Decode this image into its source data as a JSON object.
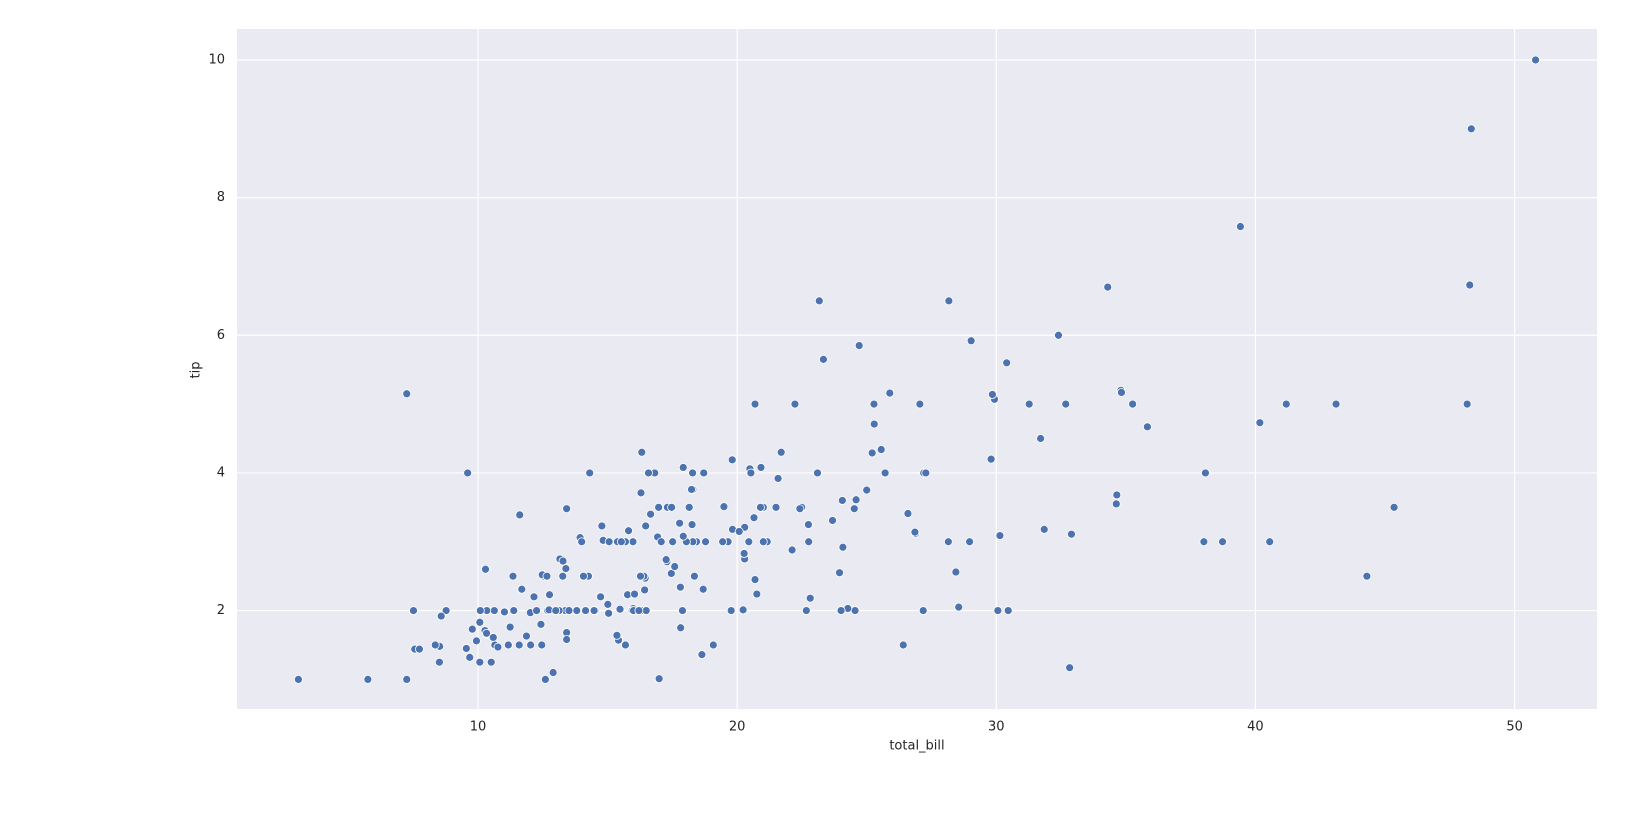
{
  "chart_data": {
    "type": "scatter",
    "xlabel": "total_bill",
    "ylabel": "tip",
    "color": "#4c72b0",
    "background": "#eaeaf2",
    "grid": true,
    "xlim": [
      0.7,
      53.18
    ],
    "ylim": [
      0.57,
      10.45
    ],
    "xticks": [
      10,
      20,
      30,
      40,
      50
    ],
    "yticks": [
      2,
      4,
      6,
      8,
      10
    ],
    "x": [
      16.99,
      10.34,
      21.01,
      23.68,
      24.59,
      25.29,
      8.77,
      26.88,
      15.04,
      14.78,
      10.27,
      35.26,
      15.42,
      18.43,
      14.83,
      21.58,
      10.33,
      16.29,
      16.97,
      20.65,
      17.92,
      20.29,
      15.77,
      39.42,
      19.82,
      17.81,
      13.37,
      12.69,
      21.7,
      19.65,
      9.55,
      18.35,
      15.06,
      20.69,
      17.78,
      24.06,
      16.31,
      16.93,
      18.69,
      31.27,
      16.04,
      17.46,
      13.94,
      9.68,
      30.4,
      18.29,
      22.23,
      32.4,
      28.55,
      18.04,
      12.54,
      10.29,
      34.81,
      9.94,
      25.56,
      19.49,
      38.01,
      26.41,
      11.24,
      48.27,
      20.29,
      13.81,
      11.02,
      18.29,
      17.59,
      20.08,
      16.45,
      3.07,
      20.23,
      15.01,
      12.02,
      17.07,
      26.86,
      25.28,
      14.73,
      10.51,
      17.92,
      27.2,
      22.76,
      17.29,
      19.44,
      16.66,
      10.07,
      32.68,
      15.98,
      34.83,
      13.03,
      18.28,
      24.71,
      21.16,
      28.97,
      22.49,
      5.75,
      16.32,
      22.75,
      40.17,
      27.28,
      12.03,
      21.01,
      12.46,
      11.35,
      15.38,
      44.3,
      22.42,
      20.92,
      15.36,
      20.49,
      25.21,
      18.24,
      14.31,
      14.0,
      7.25,
      38.07,
      23.95,
      25.71,
      17.31,
      29.93,
      10.65,
      12.43,
      24.08,
      11.69,
      13.42,
      14.26,
      15.95,
      12.48,
      29.8,
      8.52,
      14.52,
      11.38,
      22.82,
      19.08,
      20.27,
      11.17,
      12.26,
      18.26,
      8.51,
      10.33,
      14.15,
      16.0,
      13.16,
      17.47,
      34.3,
      41.19,
      27.05,
      16.43,
      8.35,
      18.64,
      11.87,
      9.78,
      7.51,
      14.07,
      13.13,
      17.26,
      24.55,
      19.77,
      29.85,
      48.17,
      25.0,
      13.39,
      16.49,
      21.5,
      12.66,
      16.21,
      13.81,
      17.51,
      24.52,
      20.76,
      31.71,
      10.59,
      10.63,
      50.81,
      15.81,
      7.25,
      31.85,
      16.82,
      32.9,
      17.89,
      14.48,
      9.6,
      34.63,
      34.65,
      23.33,
      45.35,
      23.17,
      40.55,
      20.69,
      20.9,
      30.46,
      18.15,
      23.1,
      15.69,
      19.81,
      28.44,
      15.48,
      16.58,
      7.56,
      10.34,
      43.11,
      13.0,
      13.51,
      18.71,
      12.74,
      13.0,
      16.4,
      20.53,
      16.47,
      26.59,
      38.73,
      24.27,
      12.76,
      30.06,
      25.89,
      48.33,
      13.27,
      28.17,
      12.9,
      28.15,
      11.59,
      7.74,
      30.14,
      12.16,
      13.42,
      8.58,
      15.98,
      13.42,
      16.27,
      10.09,
      20.45,
      13.28,
      22.12,
      24.01,
      15.69,
      11.61,
      10.77,
      15.53,
      10.07,
      12.6,
      32.83,
      35.83,
      29.03,
      27.18,
      22.67,
      17.82,
      18.78
    ],
    "values": [
      1.01,
      1.66,
      3.5,
      3.31,
      3.61,
      4.71,
      2.0,
      3.12,
      1.96,
      3.23,
      1.71,
      5.0,
      1.57,
      3.0,
      3.02,
      3.92,
      1.67,
      3.71,
      3.5,
      3.35,
      4.08,
      2.75,
      2.23,
      7.58,
      3.18,
      2.34,
      2.0,
      2.0,
      4.3,
      3.0,
      1.45,
      2.5,
      3.0,
      2.45,
      3.27,
      3.6,
      2.0,
      3.07,
      2.31,
      5.0,
      2.24,
      2.54,
      3.06,
      1.32,
      5.6,
      3.0,
      5.0,
      6.0,
      2.05,
      3.0,
      2.5,
      2.6,
      5.2,
      1.56,
      4.34,
      3.51,
      3.0,
      1.5,
      1.76,
      6.73,
      3.21,
      2.0,
      1.98,
      3.76,
      2.64,
      3.15,
      2.47,
      1.0,
      2.01,
      2.09,
      1.97,
      3.0,
      3.14,
      5.0,
      2.2,
      1.25,
      3.08,
      4.0,
      3.0,
      2.71,
      3.0,
      3.4,
      1.83,
      5.0,
      2.03,
      5.17,
      2.0,
      4.0,
      5.85,
      3.0,
      3.0,
      3.5,
      1.0,
      4.3,
      3.25,
      4.73,
      4.0,
      1.5,
      3.0,
      1.5,
      2.5,
      3.0,
      2.5,
      3.48,
      4.08,
      1.64,
      4.06,
      4.29,
      3.76,
      4.0,
      3.0,
      1.0,
      4.0,
      2.55,
      4.0,
      3.5,
      5.07,
      1.5,
      1.8,
      2.92,
      2.31,
      1.68,
      2.5,
      2.0,
      2.52,
      4.2,
      1.48,
      2.0,
      2.0,
      2.18,
      1.5,
      2.83,
      1.5,
      2.0,
      3.25,
      1.25,
      2.0,
      2.0,
      2.0,
      2.75,
      3.5,
      6.7,
      5.0,
      5.0,
      2.3,
      1.5,
      1.36,
      1.63,
      1.73,
      2.0,
      2.5,
      2.0,
      2.74,
      2.0,
      2.0,
      5.14,
      5.0,
      3.75,
      2.61,
      2.0,
      3.5,
      2.5,
      2.0,
      2.0,
      3.0,
      3.48,
      2.24,
      4.5,
      1.61,
      2.0,
      10.0,
      3.16,
      5.15,
      3.18,
      4.0,
      3.11,
      2.0,
      2.0,
      4.0,
      3.55,
      3.68,
      5.65,
      3.5,
      6.5,
      3.0,
      5.0,
      3.5,
      2.0,
      3.5,
      4.0,
      1.5,
      4.19,
      2.56,
      2.02,
      4.0,
      1.44,
      2.0,
      5.0,
      2.0,
      2.0,
      4.0,
      2.01,
      2.0,
      2.5,
      4.0,
      3.23,
      3.41,
      3.0,
      2.03,
      2.23,
      2.0,
      5.16,
      9.0,
      2.5,
      6.5,
      1.1,
      3.0,
      1.5,
      1.44,
      3.09,
      2.2,
      3.48,
      1.92,
      3.0,
      1.58,
      2.5,
      2.0,
      3.0,
      2.72,
      2.88,
      2.0,
      3.0,
      3.39,
      1.47,
      3.0,
      1.25,
      1.0,
      1.17,
      4.67,
      5.92,
      2.0,
      2.0,
      1.75,
      3.0
    ]
  }
}
